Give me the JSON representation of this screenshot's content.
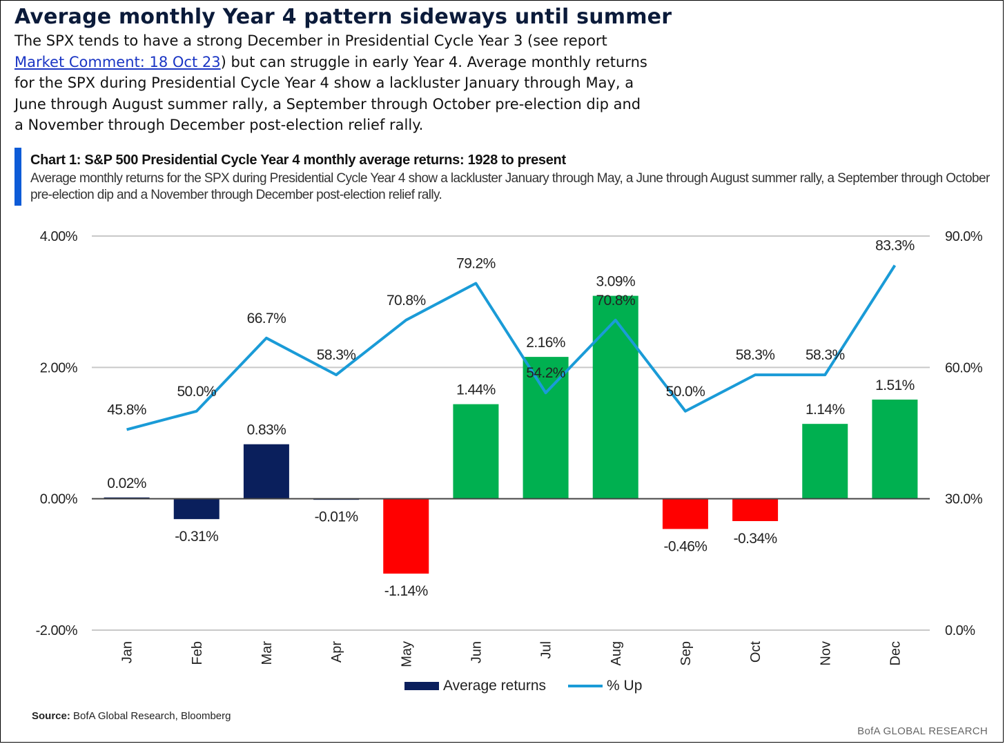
{
  "headline": "Average monthly Year 4 pattern sideways until summer",
  "intro": {
    "text_before": "The SPX tends to have a strong December in Presidential Cycle Year 3 (see report ",
    "link_text": "Market Comment: 18 Oct 23",
    "text_after": ") but can struggle in early Year 4. Average monthly returns for the SPX during Presidential Cycle Year 4 show a lackluster January through May, a June through August summer rally, a September through October pre-election dip and a November through December post-election relief rally."
  },
  "chart_data": {
    "type": "bar",
    "title": "Chart 1: S&P 500 Presidential Cycle Year 4 monthly average returns: 1928 to present",
    "subtitle": "Average monthly returns for the SPX during Presidential Cycle Year 4 show a lackluster January through May, a June through August summer rally, a September through October pre-election dip and a November through December post-election relief rally.",
    "categories": [
      "Jan",
      "Feb",
      "Mar",
      "Apr",
      "May",
      "Jun",
      "Jul",
      "Aug",
      "Sep",
      "Oct",
      "Nov",
      "Dec"
    ],
    "series": [
      {
        "name": "Average returns",
        "type": "bar",
        "axis": "left",
        "values": [
          0.02,
          -0.31,
          0.83,
          -0.01,
          -1.14,
          1.44,
          2.16,
          3.09,
          -0.46,
          -0.34,
          1.14,
          1.51
        ],
        "labels": [
          "0.02%",
          "-0.31%",
          "0.83%",
          "-0.01%",
          "-1.14%",
          "1.44%",
          "2.16%",
          "3.09%",
          "-0.46%",
          "-0.34%",
          "1.14%",
          "1.51%"
        ],
        "bar_colors": [
          "#0a1f5c",
          "#0a1f5c",
          "#0a1f5c",
          "#0a1f5c",
          "#ff0000",
          "#00b050",
          "#00b050",
          "#00b050",
          "#ff0000",
          "#ff0000",
          "#00b050",
          "#00b050"
        ]
      },
      {
        "name": "% Up",
        "type": "line",
        "axis": "right",
        "color": "#1a9bd7",
        "values": [
          45.8,
          50.0,
          66.7,
          58.3,
          70.8,
          79.2,
          54.2,
          70.8,
          50.0,
          58.3,
          58.3,
          83.3
        ],
        "labels": [
          "45.8%",
          "50.0%",
          "66.7%",
          "58.3%",
          "70.8%",
          "79.2%",
          "54.2%",
          "70.8%",
          "50.0%",
          "58.3%",
          "58.3%",
          "83.3%"
        ]
      }
    ],
    "y_left": {
      "ylim": [
        -2,
        4
      ],
      "ticks": [
        -2,
        0,
        2,
        4
      ],
      "tick_labels": [
        "-2.00%",
        "0.00%",
        "2.00%",
        "4.00%"
      ]
    },
    "y_right": {
      "ylim": [
        0,
        90
      ],
      "ticks": [
        0,
        30,
        60,
        90
      ],
      "tick_labels": [
        "0.0%",
        "30.0%",
        "60.0%",
        "90.0%"
      ]
    },
    "grid": true,
    "legend_position": "bottom"
  },
  "legend": {
    "bar_label": "Average returns",
    "line_label": "% Up"
  },
  "source": {
    "label": "Source:",
    "text": "BofA Global Research, Bloomberg"
  },
  "footer_brand": "BofA GLOBAL RESEARCH"
}
